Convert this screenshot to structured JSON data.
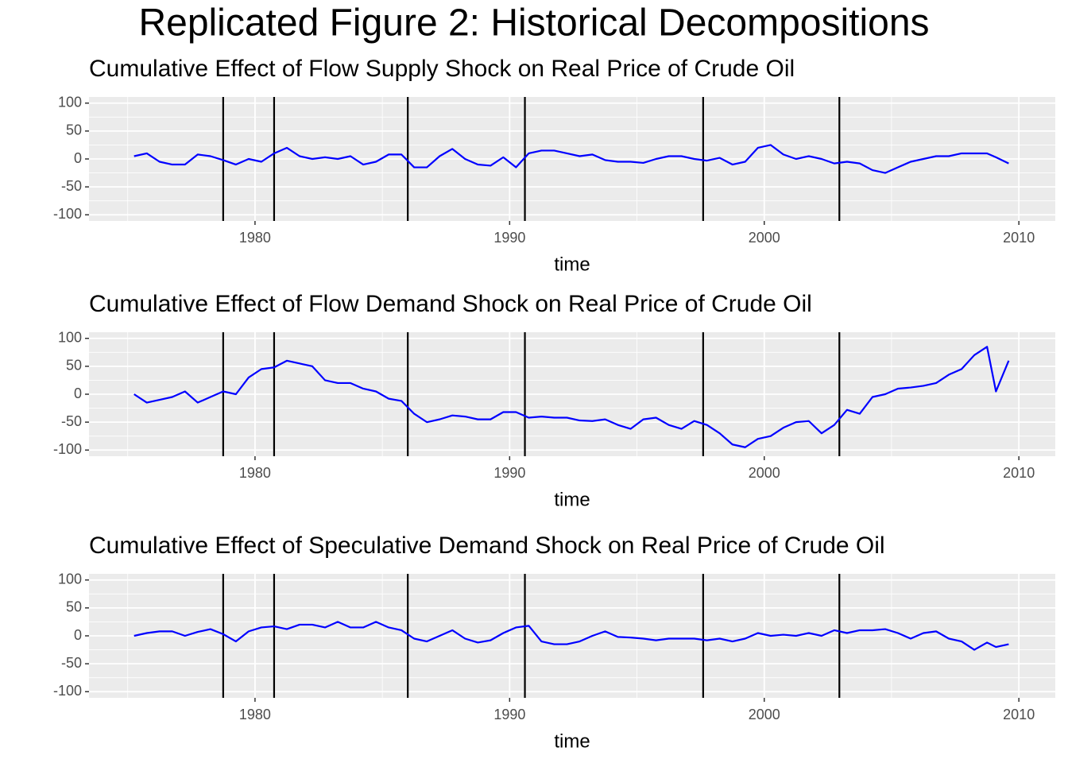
{
  "title": "Replicated Figure 2: Historical Decompositions",
  "chart_data": [
    {
      "type": "line",
      "title": "Cumulative Effect of Flow Supply Shock on Real Price of Crude Oil",
      "xlabel": "time",
      "x": [
        1975.25,
        1975.75,
        1976.25,
        1976.75,
        1977.25,
        1977.75,
        1978.25,
        1978.75,
        1979.25,
        1979.75,
        1980.25,
        1980.75,
        1981.25,
        1981.75,
        1982.25,
        1982.75,
        1983.25,
        1983.75,
        1984.25,
        1984.75,
        1985.25,
        1985.75,
        1986.25,
        1986.75,
        1987.25,
        1987.75,
        1988.25,
        1988.75,
        1989.25,
        1989.75,
        1990.25,
        1990.75,
        1991.25,
        1991.75,
        1992.25,
        1992.75,
        1993.25,
        1993.75,
        1994.25,
        1994.75,
        1995.25,
        1995.75,
        1996.25,
        1996.75,
        1997.25,
        1997.75,
        1998.25,
        1998.75,
        1999.25,
        1999.75,
        2000.25,
        2000.75,
        2001.25,
        2001.75,
        2002.25,
        2002.75,
        2003.25,
        2003.75,
        2004.25,
        2004.75,
        2005.25,
        2005.75,
        2006.25,
        2006.75,
        2007.25,
        2007.75,
        2008.25,
        2008.75,
        2009.1,
        2009.6
      ],
      "series": [
        {
          "color": "#0000ff",
          "values": [
            5,
            10,
            -5,
            -10,
            -10,
            8,
            5,
            -2,
            -10,
            0,
            -5,
            10,
            20,
            5,
            0,
            3,
            0,
            5,
            -10,
            -5,
            8,
            8,
            -15,
            -15,
            5,
            18,
            0,
            -10,
            -12,
            3,
            -15,
            10,
            15,
            15,
            10,
            5,
            8,
            -2,
            -5,
            -5,
            -7,
            0,
            5,
            5,
            0,
            -3,
            2,
            -10,
            -5,
            20,
            25,
            8,
            0,
            5,
            0,
            -8,
            -5,
            -8,
            -20,
            -25,
            -15,
            -5,
            0,
            5,
            5,
            10,
            10,
            10,
            3,
            -8
          ]
        }
      ],
      "vlines": [
        1978.75,
        1980.75,
        1986,
        1990.6,
        1997.6,
        2002.95
      ],
      "vline_color": "#000000",
      "xlim": [
        1973.48,
        2011.43
      ],
      "xticks": [
        1980,
        1990,
        2000,
        2010
      ],
      "xminor": [
        1975,
        1985,
        1995,
        2005
      ],
      "ylim": [
        -111,
        111
      ],
      "yticks": [
        -100,
        -50,
        0,
        50,
        100
      ],
      "yminor": [
        -75,
        -25,
        25,
        75
      ],
      "grid": true
    },
    {
      "type": "line",
      "title": "Cumulative Effect of Flow Demand Shock on Real Price of Crude Oil",
      "xlabel": "time",
      "x": [
        1975.25,
        1975.75,
        1976.25,
        1976.75,
        1977.25,
        1977.75,
        1978.25,
        1978.75,
        1979.25,
        1979.75,
        1980.25,
        1980.75,
        1981.25,
        1981.75,
        1982.25,
        1982.75,
        1983.25,
        1983.75,
        1984.25,
        1984.75,
        1985.25,
        1985.75,
        1986.25,
        1986.75,
        1987.25,
        1987.75,
        1988.25,
        1988.75,
        1989.25,
        1989.75,
        1990.25,
        1990.75,
        1991.25,
        1991.75,
        1992.25,
        1992.75,
        1993.25,
        1993.75,
        1994.25,
        1994.75,
        1995.25,
        1995.75,
        1996.25,
        1996.75,
        1997.25,
        1997.75,
        1998.25,
        1998.75,
        1999.25,
        1999.75,
        2000.25,
        2000.75,
        2001.25,
        2001.75,
        2002.25,
        2002.75,
        2003.25,
        2003.75,
        2004.25,
        2004.75,
        2005.25,
        2005.75,
        2006.25,
        2006.75,
        2007.25,
        2007.75,
        2008.25,
        2008.75,
        2009.1,
        2009.6
      ],
      "series": [
        {
          "color": "#0000ff",
          "values": [
            0,
            -15,
            -10,
            -5,
            5,
            -15,
            -5,
            5,
            0,
            30,
            45,
            48,
            60,
            55,
            50,
            25,
            20,
            20,
            10,
            5,
            -8,
            -12,
            -35,
            -50,
            -45,
            -38,
            -40,
            -45,
            -45,
            -32,
            -32,
            -42,
            -40,
            -42,
            -42,
            -47,
            -48,
            -45,
            -55,
            -62,
            -45,
            -42,
            -55,
            -62,
            -48,
            -55,
            -70,
            -90,
            -95,
            -80,
            -75,
            -60,
            -50,
            -48,
            -70,
            -55,
            -28,
            -35,
            -5,
            0,
            10,
            12,
            15,
            20,
            35,
            45,
            70,
            85,
            5,
            60
          ]
        }
      ],
      "vlines": [
        1978.75,
        1980.75,
        1986,
        1990.6,
        1997.6,
        2002.95
      ],
      "vline_color": "#000000",
      "xlim": [
        1973.48,
        2011.43
      ],
      "xticks": [
        1980,
        1990,
        2000,
        2010
      ],
      "xminor": [
        1975,
        1985,
        1995,
        2005
      ],
      "ylim": [
        -111,
        111
      ],
      "yticks": [
        -100,
        -50,
        0,
        50,
        100
      ],
      "yminor": [
        -75,
        -25,
        25,
        75
      ],
      "grid": true
    },
    {
      "type": "line",
      "title": "Cumulative Effect of Speculative Demand Shock on Real Price of Crude Oil",
      "xlabel": "time",
      "x": [
        1975.25,
        1975.75,
        1976.25,
        1976.75,
        1977.25,
        1977.75,
        1978.25,
        1978.75,
        1979.25,
        1979.75,
        1980.25,
        1980.75,
        1981.25,
        1981.75,
        1982.25,
        1982.75,
        1983.25,
        1983.75,
        1984.25,
        1984.75,
        1985.25,
        1985.75,
        1986.25,
        1986.75,
        1987.25,
        1987.75,
        1988.25,
        1988.75,
        1989.25,
        1989.75,
        1990.25,
        1990.75,
        1991.25,
        1991.75,
        1992.25,
        1992.75,
        1993.25,
        1993.75,
        1994.25,
        1994.75,
        1995.25,
        1995.75,
        1996.25,
        1996.75,
        1997.25,
        1997.75,
        1998.25,
        1998.75,
        1999.25,
        1999.75,
        2000.25,
        2000.75,
        2001.25,
        2001.75,
        2002.25,
        2002.75,
        2003.25,
        2003.75,
        2004.25,
        2004.75,
        2005.25,
        2005.75,
        2006.25,
        2006.75,
        2007.25,
        2007.75,
        2008.25,
        2008.75,
        2009.1,
        2009.6
      ],
      "series": [
        {
          "color": "#0000ff",
          "values": [
            0,
            5,
            8,
            8,
            0,
            7,
            12,
            3,
            -10,
            8,
            15,
            17,
            12,
            20,
            20,
            15,
            25,
            15,
            15,
            25,
            15,
            10,
            -5,
            -10,
            0,
            10,
            -5,
            -12,
            -8,
            5,
            15,
            18,
            -10,
            -15,
            -15,
            -10,
            0,
            8,
            -2,
            -3,
            -5,
            -8,
            -5,
            -5,
            -5,
            -8,
            -5,
            -10,
            -5,
            5,
            0,
            2,
            0,
            5,
            0,
            10,
            5,
            10,
            10,
            12,
            5,
            -5,
            5,
            8,
            -5,
            -10,
            -25,
            -12,
            -20,
            -15
          ]
        }
      ],
      "vlines": [
        1978.75,
        1980.75,
        1986,
        1990.6,
        1997.6,
        2002.95
      ],
      "vline_color": "#000000",
      "xlim": [
        1973.48,
        2011.43
      ],
      "xticks": [
        1980,
        1990,
        2000,
        2010
      ],
      "xminor": [
        1975,
        1985,
        1995,
        2005
      ],
      "ylim": [
        -111,
        111
      ],
      "yticks": [
        -100,
        -50,
        0,
        50,
        100
      ],
      "yminor": [
        -75,
        -25,
        25,
        75
      ],
      "grid": true
    }
  ]
}
